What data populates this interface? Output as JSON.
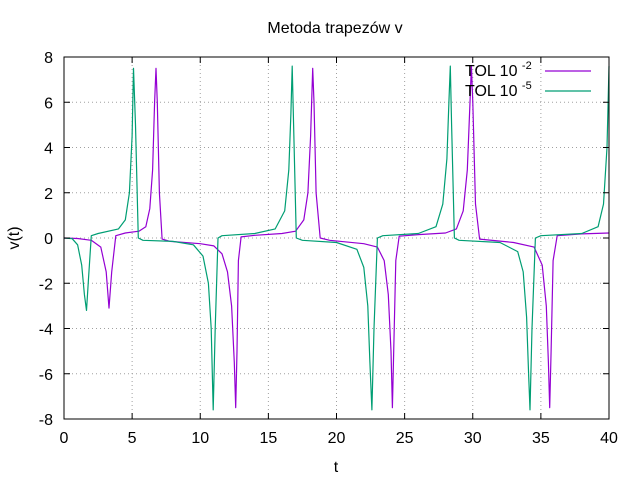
{
  "chart_data": {
    "type": "line",
    "title": "Metoda trapezów v",
    "xlabel": "t",
    "ylabel": "v(t)",
    "xlim": [
      0,
      40
    ],
    "ylim": [
      -8,
      8
    ],
    "x_ticks": [
      0,
      5,
      10,
      15,
      20,
      25,
      30,
      35,
      40
    ],
    "y_ticks": [
      -8,
      -6,
      -4,
      -2,
      0,
      2,
      4,
      6,
      8
    ],
    "x_tick_labels": [
      "0",
      "5",
      "10",
      "15",
      "20",
      "25",
      "30",
      "35",
      "40"
    ],
    "y_tick_labels": [
      "-8",
      "-6",
      "-4",
      "-2",
      "0",
      "2",
      "4",
      "6",
      "8"
    ],
    "grid": true,
    "legend_position": "top-right",
    "series": [
      {
        "name": "TOL 10",
        "name_exponent": "-2",
        "color": "#9400d3",
        "points": [
          [
            0,
            0
          ],
          [
            1.0,
            -0.02
          ],
          [
            2.0,
            -0.1
          ],
          [
            2.7,
            -0.4
          ],
          [
            3.1,
            -1.5
          ],
          [
            3.3,
            -3.1
          ],
          [
            3.5,
            -1.5
          ],
          [
            3.8,
            0.1
          ],
          [
            4.5,
            0.22
          ],
          [
            5.5,
            0.3
          ],
          [
            6.0,
            0.5
          ],
          [
            6.3,
            1.3
          ],
          [
            6.5,
            3.0
          ],
          [
            6.65,
            6.0
          ],
          [
            6.75,
            7.5
          ],
          [
            6.85,
            6.0
          ],
          [
            7.0,
            2.0
          ],
          [
            7.2,
            -0.05
          ],
          [
            7.8,
            -0.15
          ],
          [
            10.0,
            -0.25
          ],
          [
            11.0,
            -0.35
          ],
          [
            11.6,
            -0.7
          ],
          [
            12.0,
            -1.5
          ],
          [
            12.3,
            -3.0
          ],
          [
            12.5,
            -5.5
          ],
          [
            12.6,
            -7.5
          ],
          [
            12.7,
            -5.0
          ],
          [
            12.8,
            -1.0
          ],
          [
            13.0,
            0.05
          ],
          [
            14.0,
            0.12
          ],
          [
            16.0,
            0.2
          ],
          [
            17.0,
            0.3
          ],
          [
            17.6,
            0.8
          ],
          [
            17.9,
            2.0
          ],
          [
            18.1,
            4.5
          ],
          [
            18.25,
            7.5
          ],
          [
            18.35,
            6.0
          ],
          [
            18.5,
            2.0
          ],
          [
            18.8,
            0.0
          ],
          [
            19.5,
            -0.1
          ],
          [
            22.0,
            -0.25
          ],
          [
            23.0,
            -0.4
          ],
          [
            23.5,
            -1.0
          ],
          [
            23.8,
            -2.5
          ],
          [
            24.0,
            -5.0
          ],
          [
            24.1,
            -7.5
          ],
          [
            24.2,
            -5.0
          ],
          [
            24.35,
            -1.0
          ],
          [
            24.6,
            0.08
          ],
          [
            26.0,
            0.15
          ],
          [
            28.0,
            0.22
          ],
          [
            28.8,
            0.4
          ],
          [
            29.3,
            1.2
          ],
          [
            29.6,
            3.0
          ],
          [
            29.8,
            6.0
          ],
          [
            29.9,
            7.6
          ],
          [
            30.0,
            6.0
          ],
          [
            30.2,
            1.5
          ],
          [
            30.5,
            -0.05
          ],
          [
            33.0,
            -0.2
          ],
          [
            34.5,
            -0.4
          ],
          [
            35.1,
            -1.2
          ],
          [
            35.4,
            -3.0
          ],
          [
            35.55,
            -5.5
          ],
          [
            35.65,
            -7.5
          ],
          [
            35.75,
            -5.0
          ],
          [
            35.9,
            -1.0
          ],
          [
            36.2,
            0.1
          ],
          [
            38.0,
            0.18
          ],
          [
            40,
            0.22
          ]
        ]
      },
      {
        "name": "TOL 10",
        "name_exponent": "-5",
        "color": "#009e73",
        "points": [
          [
            0,
            0
          ],
          [
            0.6,
            -0.03
          ],
          [
            1.0,
            -0.3
          ],
          [
            1.3,
            -1.2
          ],
          [
            1.5,
            -2.5
          ],
          [
            1.65,
            -3.2
          ],
          [
            1.8,
            -1.8
          ],
          [
            2.0,
            0.1
          ],
          [
            2.5,
            0.2
          ],
          [
            4.0,
            0.4
          ],
          [
            4.5,
            0.8
          ],
          [
            4.8,
            2.0
          ],
          [
            5.0,
            4.5
          ],
          [
            5.1,
            7.5
          ],
          [
            5.25,
            5.0
          ],
          [
            5.45,
            0.0
          ],
          [
            5.8,
            -0.1
          ],
          [
            8.0,
            -0.15
          ],
          [
            9.5,
            -0.3
          ],
          [
            10.2,
            -0.8
          ],
          [
            10.6,
            -2.0
          ],
          [
            10.8,
            -4.0
          ],
          [
            10.95,
            -7.6
          ],
          [
            11.1,
            -4.0
          ],
          [
            11.3,
            0.0
          ],
          [
            11.6,
            0.1
          ],
          [
            14.0,
            0.2
          ],
          [
            15.5,
            0.4
          ],
          [
            16.2,
            1.2
          ],
          [
            16.5,
            3.0
          ],
          [
            16.65,
            5.5
          ],
          [
            16.75,
            7.6
          ],
          [
            16.85,
            5.0
          ],
          [
            17.05,
            0.0
          ],
          [
            17.5,
            -0.1
          ],
          [
            20.0,
            -0.2
          ],
          [
            21.5,
            -0.5
          ],
          [
            22.0,
            -1.3
          ],
          [
            22.3,
            -3.0
          ],
          [
            22.45,
            -5.5
          ],
          [
            22.6,
            -7.6
          ],
          [
            22.75,
            -4.0
          ],
          [
            23.0,
            0.0
          ],
          [
            23.4,
            0.1
          ],
          [
            26.0,
            0.2
          ],
          [
            27.3,
            0.5
          ],
          [
            27.8,
            1.5
          ],
          [
            28.1,
            3.5
          ],
          [
            28.25,
            6.0
          ],
          [
            28.35,
            7.6
          ],
          [
            28.45,
            5.0
          ],
          [
            28.65,
            0.0
          ],
          [
            29.0,
            -0.1
          ],
          [
            32.0,
            -0.2
          ],
          [
            33.3,
            -0.6
          ],
          [
            33.7,
            -1.5
          ],
          [
            33.95,
            -3.5
          ],
          [
            34.1,
            -6.0
          ],
          [
            34.2,
            -7.6
          ],
          [
            34.35,
            -4.0
          ],
          [
            34.6,
            0.0
          ],
          [
            35.0,
            0.1
          ],
          [
            38.0,
            0.2
          ],
          [
            39.2,
            0.5
          ],
          [
            39.6,
            1.5
          ],
          [
            39.85,
            4.0
          ],
          [
            40,
            7.6
          ]
        ]
      }
    ]
  }
}
